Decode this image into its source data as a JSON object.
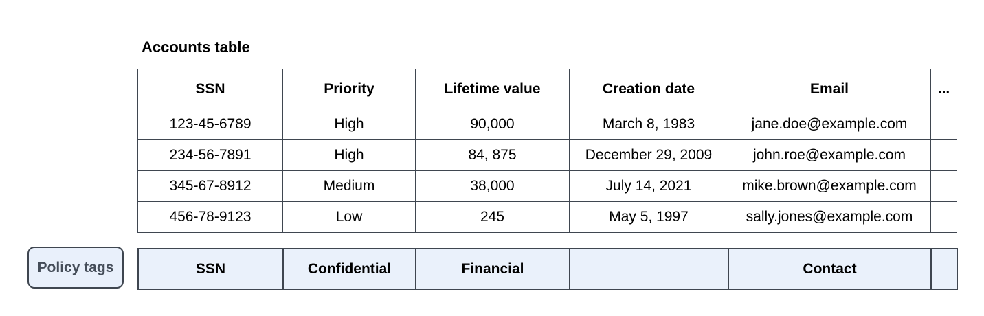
{
  "title": "Accounts table",
  "table": {
    "columns": [
      "SSN",
      "Priority",
      "Lifetime value",
      "Creation date",
      "Email",
      "..."
    ],
    "rows": [
      [
        "123-45-6789",
        "High",
        "90,000",
        "March 8, 1983",
        "jane.doe@example.com",
        ""
      ],
      [
        "234-56-7891",
        "High",
        "84, 875",
        "December 29, 2009",
        "john.roe@example.com",
        ""
      ],
      [
        "345-67-8912",
        "Medium",
        "38,000",
        "July 14, 2021",
        "mike.brown@example.com",
        ""
      ],
      [
        "456-78-9123",
        "Low",
        "245",
        "May 5, 1997",
        "sally.jones@example.com",
        ""
      ]
    ]
  },
  "policy": {
    "button_label": "Policy tags",
    "tags": [
      "SSN",
      "Confidential",
      "Financial",
      "",
      "Contact",
      ""
    ]
  },
  "colors": {
    "border": "#3f4650",
    "policy_fill": "#eaf1fb",
    "button_fill": "#e9f0fb",
    "button_text": "#454d59",
    "text": "#000000"
  }
}
